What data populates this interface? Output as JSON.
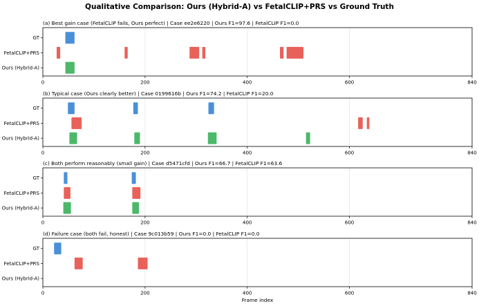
{
  "figure": {
    "title": "Qualitative Comparison: Ours (Hybrid-A) vs FetalCLIP+PRS vs Ground Truth"
  },
  "colors": {
    "GT": "#4a90d9",
    "FetalCLIP+PRS": "#e8625a",
    "Ours (Hybrid-A)": "#4cb86a",
    "grid": "#e6e6e6",
    "frame": "#000000"
  },
  "chart_data": [
    {
      "type": "timeline",
      "title": "(a) Best gain case (FetalCLIP fails, Ours perfect)  |  Case ee2e6220  |  Ours F1=97.6  |  FetalCLIP F1=0.0",
      "rows": [
        "GT",
        "FetalCLIP+PRS",
        "Ours (Hybrid-A)"
      ],
      "xlim": [
        0,
        840
      ],
      "xticks": [
        0,
        200,
        400,
        600,
        840
      ],
      "xlabel": "",
      "grid": true,
      "segments": {
        "GT": [
          [
            44,
            62
          ]
        ],
        "FetalCLIP+PRS": [
          [
            27,
            34
          ],
          [
            160,
            166
          ],
          [
            287,
            306
          ],
          [
            312,
            318
          ],
          [
            464,
            471
          ],
          [
            477,
            510
          ]
        ],
        "Ours (Hybrid-A)": [
          [
            44,
            62
          ]
        ]
      }
    },
    {
      "type": "timeline",
      "title": "(b) Typical case (Ours clearly better)  |  Case 0199616b  |  Ours F1=74.2  |  FetalCLIP F1=20.0",
      "rows": [
        "GT",
        "FetalCLIP+PRS",
        "Ours (Hybrid-A)"
      ],
      "xlim": [
        0,
        840
      ],
      "xticks": [
        0,
        200,
        400,
        600,
        840
      ],
      "xlabel": "",
      "grid": true,
      "segments": {
        "GT": [
          [
            49,
            62
          ],
          [
            177,
            186
          ],
          [
            324,
            335
          ]
        ],
        "FetalCLIP+PRS": [
          [
            56,
            76
          ],
          [
            617,
            626
          ],
          [
            634,
            639
          ]
        ],
        "Ours (Hybrid-A)": [
          [
            52,
            67
          ],
          [
            179,
            190
          ],
          [
            323,
            340
          ],
          [
            515,
            523
          ]
        ]
      }
    },
    {
      "type": "timeline",
      "title": "(c) Both perform reasonably (small gain)  |  Case d5471cfd  |  Ours F1=66.7  |  FetalCLIP F1=63.6",
      "rows": [
        "GT",
        "FetalCLIP+PRS",
        "Ours (Hybrid-A)"
      ],
      "xlim": [
        0,
        840
      ],
      "xticks": [
        0,
        200,
        400,
        600,
        840
      ],
      "xlabel": "",
      "grid": true,
      "segments": {
        "GT": [
          [
            41,
            48
          ],
          [
            174,
            182
          ]
        ],
        "FetalCLIP+PRS": [
          [
            41,
            54
          ],
          [
            175,
            191
          ]
        ],
        "Ours (Hybrid-A)": [
          [
            40,
            55
          ],
          [
            175,
            188
          ]
        ]
      }
    },
    {
      "type": "timeline",
      "title": "(d) Failure case (both fail, honest)  |  Case 9c013b59  |  Ours F1=0.0  |  FetalCLIP F1=0.0",
      "rows": [
        "GT",
        "FetalCLIP+PRS",
        "Ours (Hybrid-A)"
      ],
      "xlim": [
        0,
        840
      ],
      "xticks": [
        0,
        200,
        400,
        600,
        840
      ],
      "xlabel": "Frame index",
      "grid": true,
      "segments": {
        "GT": [
          [
            22,
            36
          ]
        ],
        "FetalCLIP+PRS": [
          [
            62,
            78
          ],
          [
            186,
            205
          ]
        ],
        "Ours (Hybrid-A)": []
      }
    }
  ]
}
